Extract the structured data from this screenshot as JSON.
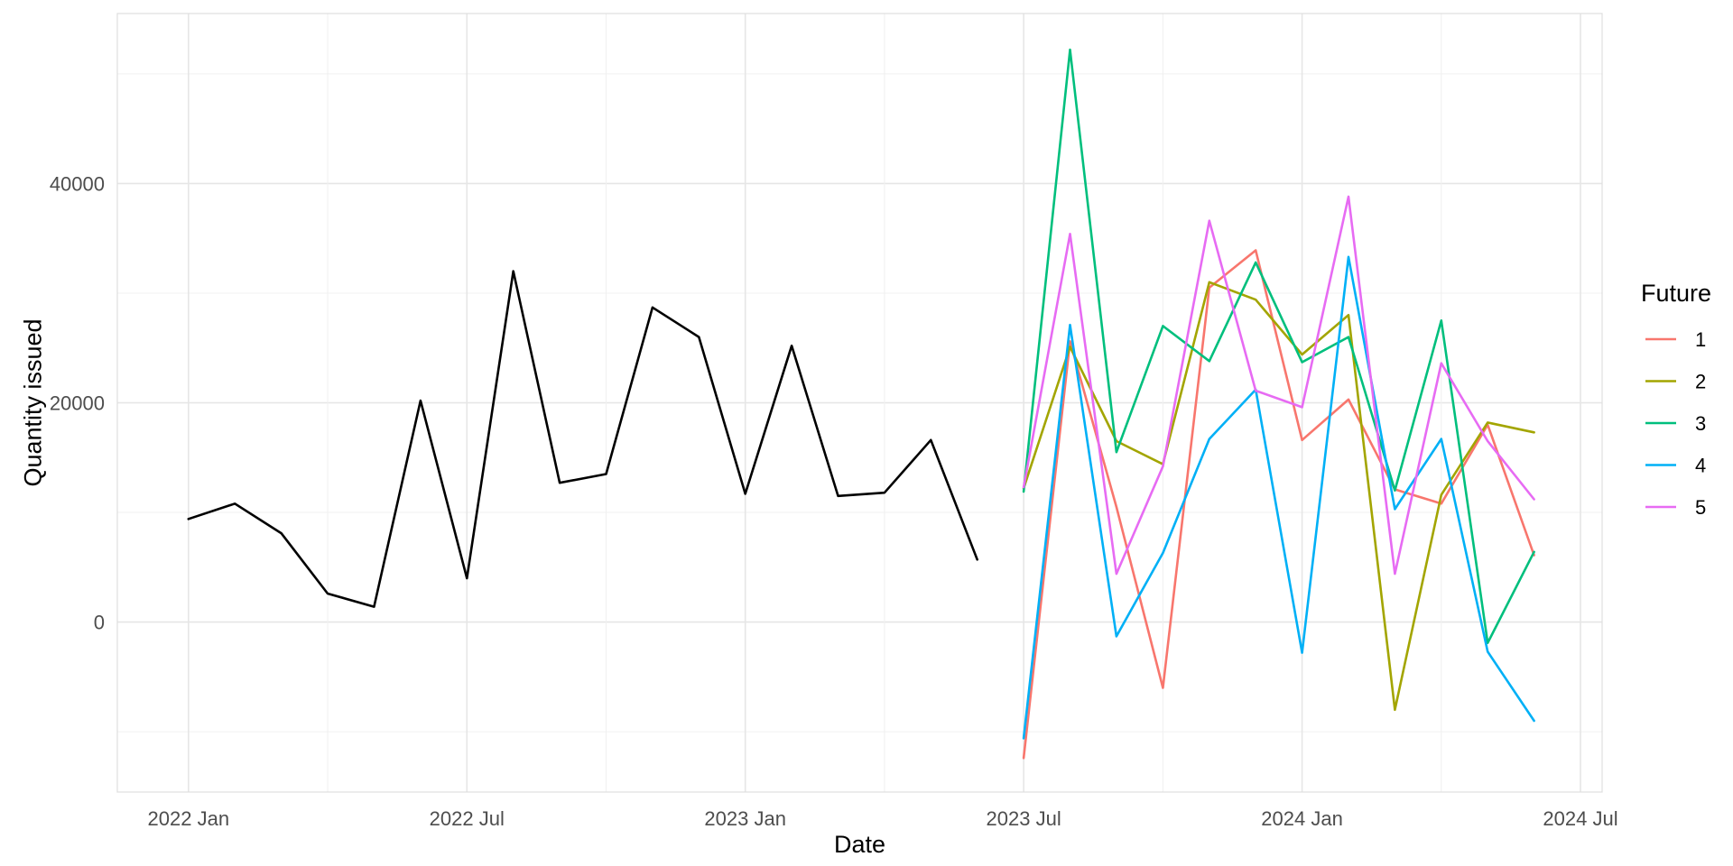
{
  "chart_data": {
    "type": "line",
    "title": "",
    "xlabel": "Date",
    "ylabel": "Quantity issued",
    "x_tick_labels": [
      "2022 Jan",
      "2022 Jul",
      "2023 Jan",
      "2023 Jul",
      "2024 Jan",
      "2024 Jul"
    ],
    "y_tick_labels": [
      "0",
      "20000",
      "40000"
    ],
    "y_ticks": [
      0,
      20000,
      40000
    ],
    "ylim": [
      -15500,
      55500
    ],
    "xlim": [
      "2021-11-15",
      "2024-07-15"
    ],
    "grid": true,
    "legend": {
      "title": "Future",
      "position": "right"
    },
    "history": {
      "color": "#000000",
      "x": [
        "2022-01",
        "2022-02",
        "2022-03",
        "2022-04",
        "2022-05",
        "2022-06",
        "2022-07",
        "2022-08",
        "2022-09",
        "2022-10",
        "2022-11",
        "2022-12",
        "2023-01",
        "2023-02",
        "2023-03",
        "2023-04",
        "2023-05",
        "2023-06"
      ],
      "values": [
        9400,
        10800,
        8100,
        2600,
        1400,
        20200,
        4000,
        32000,
        12700,
        13500,
        28700,
        26000,
        11700,
        25200,
        11500,
        11800,
        16600,
        5700
      ]
    },
    "forecast_x": [
      "2023-07",
      "2023-08",
      "2023-09",
      "2023-10",
      "2023-11",
      "2023-12",
      "2024-01",
      "2024-02",
      "2024-03",
      "2024-04",
      "2024-05",
      "2024-06"
    ],
    "series": [
      {
        "name": "1",
        "color": "#F8766D",
        "values": [
          -12400,
          25600,
          10500,
          -6000,
          30500,
          33900,
          16600,
          20300,
          12100,
          10800,
          18000,
          6100
        ]
      },
      {
        "name": "2",
        "color": "#A3A500",
        "values": [
          12200,
          25100,
          16500,
          14400,
          31000,
          29400,
          24400,
          28000,
          -8000,
          11600,
          18200,
          17300
        ]
      },
      {
        "name": "3",
        "color": "#00BF7D",
        "values": [
          11900,
          52200,
          15500,
          27000,
          23800,
          32800,
          23700,
          26000,
          12000,
          27500,
          -1900,
          6400
        ]
      },
      {
        "name": "4",
        "color": "#00B0F6",
        "values": [
          -10600,
          27100,
          -1300,
          6300,
          16700,
          21200,
          -2800,
          33300,
          10300,
          16700,
          -2700,
          -9000
        ]
      },
      {
        "name": "5",
        "color": "#E76BF3",
        "values": [
          12300,
          35400,
          4400,
          14200,
          36600,
          21100,
          19600,
          38800,
          4400,
          23600,
          16500,
          11200
        ]
      }
    ]
  }
}
